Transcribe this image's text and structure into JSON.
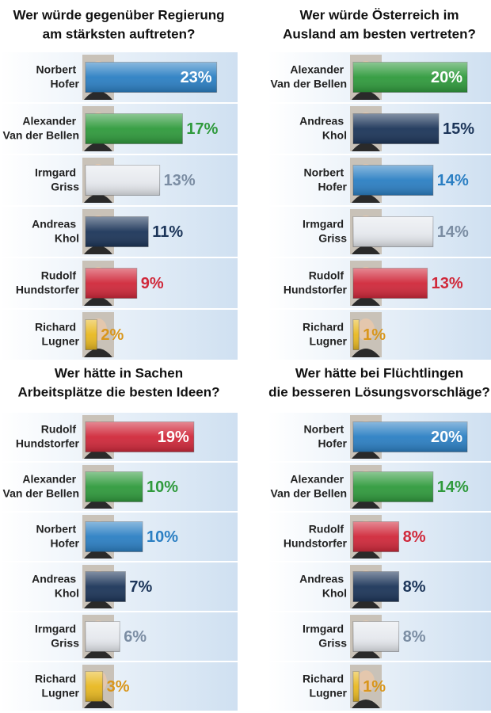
{
  "chart_data": [
    {
      "type": "bar",
      "title": [
        "Wer würde gegenüber Regierung",
        "am stärksten auftreten?"
      ],
      "categories": [
        "Norbert Hofer",
        "Alexander Van der Bellen",
        "Irmgard Griss",
        "Andreas Khol",
        "Rudolf Hundstorfer",
        "Richard Lugner"
      ],
      "values": [
        23,
        17,
        13,
        11,
        9,
        2
      ],
      "value_labels": [
        "23%",
        "17%",
        "13%",
        "11%",
        "9%",
        "2%"
      ],
      "colors": [
        "#2b7fc3",
        "#2f9a3c",
        "#e6e9ee",
        "#1c3559",
        "#d0283a",
        "#e8b820"
      ],
      "label_colors": [
        "#2b7fc3",
        "#2f9a3c",
        "#7b8da3",
        "#1c3559",
        "#d0283a",
        "#d9961c"
      ],
      "xlim": [
        0,
        25
      ]
    },
    {
      "type": "bar",
      "title": [
        "Wer würde Österreich im",
        "Ausland am besten vertreten?"
      ],
      "categories": [
        "Alexander Van der Bellen",
        "Andreas Khol",
        "Norbert Hofer",
        "Irmgard Griss",
        "Rudolf Hundstorfer",
        "Richard Lugner"
      ],
      "values": [
        20,
        15,
        14,
        14,
        13,
        1
      ],
      "value_labels": [
        "20%",
        "15%",
        "14%",
        "14%",
        "13%",
        "1%"
      ],
      "colors": [
        "#2f9a3c",
        "#1c3559",
        "#2b7fc3",
        "#e6e9ee",
        "#d0283a",
        "#e8b820"
      ],
      "label_colors": [
        "#2f9a3c",
        "#1c3559",
        "#2b7fc3",
        "#7b8da3",
        "#d0283a",
        "#d9961c"
      ],
      "xlim": [
        0,
        25
      ]
    },
    {
      "type": "bar",
      "title": [
        "Wer hätte in Sachen",
        "Arbeitsplätze die besten Ideen?"
      ],
      "categories": [
        "Rudolf Hundstorfer",
        "Alexander Van der Bellen",
        "Norbert Hofer",
        "Andreas Khol",
        "Irmgard Griss",
        "Richard Lugner"
      ],
      "values": [
        19,
        10,
        10,
        7,
        6,
        3
      ],
      "value_labels": [
        "19%",
        "10%",
        "10%",
        "7%",
        "6%",
        "3%"
      ],
      "colors": [
        "#d0283a",
        "#2f9a3c",
        "#2b7fc3",
        "#1c3559",
        "#e6e9ee",
        "#e8b820"
      ],
      "label_colors": [
        "#d0283a",
        "#2f9a3c",
        "#2b7fc3",
        "#1c3559",
        "#7b8da3",
        "#d9961c"
      ],
      "xlim": [
        0,
        25
      ]
    },
    {
      "type": "bar",
      "title": [
        "Wer hätte bei Flüchtlingen",
        "die besseren Lösungsvorschläge?"
      ],
      "categories": [
        "Norbert Hofer",
        "Alexander Van der Bellen",
        "Rudolf Hundstorfer",
        "Andreas Khol",
        "Irmgard Griss",
        "Richard Lugner"
      ],
      "values": [
        20,
        14,
        8,
        8,
        8,
        1
      ],
      "value_labels": [
        "20%",
        "14%",
        "8%",
        "8%",
        "8%",
        "1%"
      ],
      "colors": [
        "#2b7fc3",
        "#2f9a3c",
        "#d0283a",
        "#1c3559",
        "#e6e9ee",
        "#e8b820"
      ],
      "label_colors": [
        "#2b7fc3",
        "#2f9a3c",
        "#d0283a",
        "#1c3559",
        "#7b8da3",
        "#d9961c"
      ],
      "xlim": [
        0,
        25
      ]
    }
  ]
}
